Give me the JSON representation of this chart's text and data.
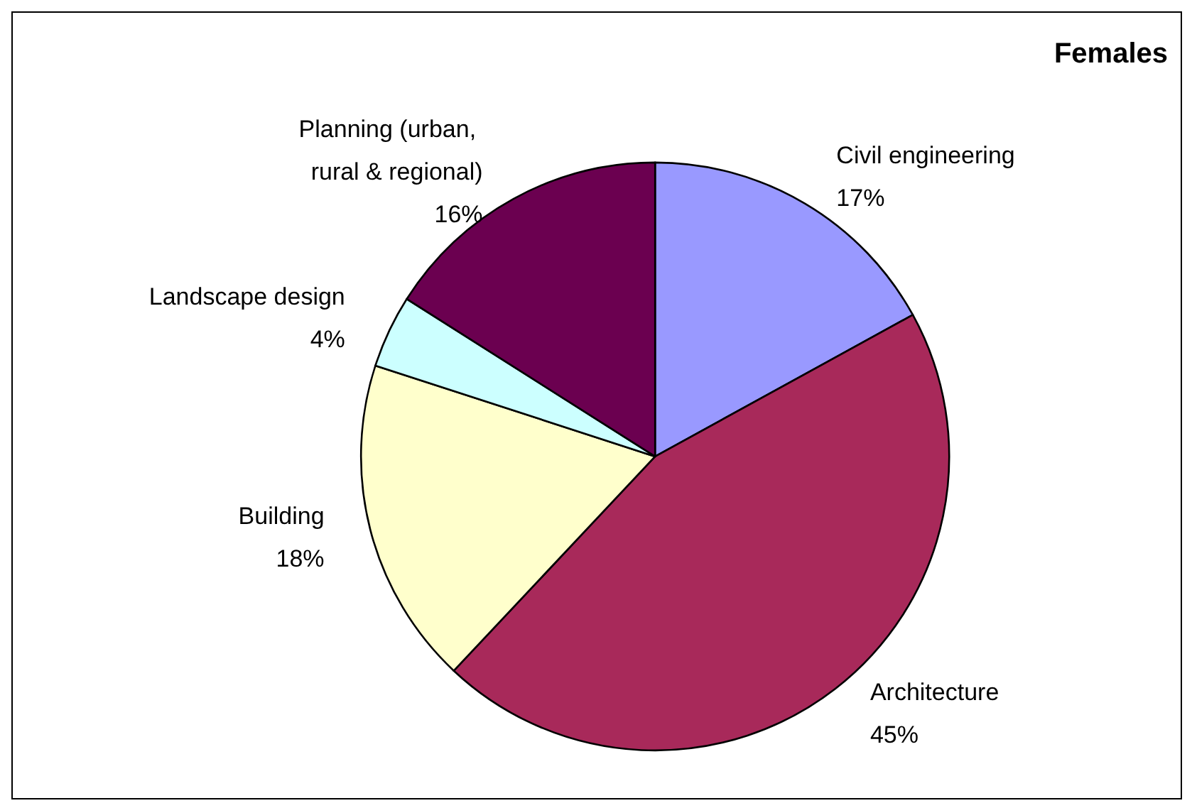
{
  "chart_data": {
    "type": "pie",
    "title": "Females",
    "categories": [
      "Civil engineering",
      "Architecture",
      "Building",
      "Landscape design",
      "Planning (urban, rural & regional)"
    ],
    "values": [
      17,
      45,
      18,
      4,
      16
    ],
    "value_labels": [
      "17%",
      "45%",
      "18%",
      "4%",
      "16%"
    ],
    "colors": [
      "#9999ff",
      "#a8295a",
      "#ffffcc",
      "#ccffff",
      "#6b0050"
    ],
    "legend": false
  }
}
